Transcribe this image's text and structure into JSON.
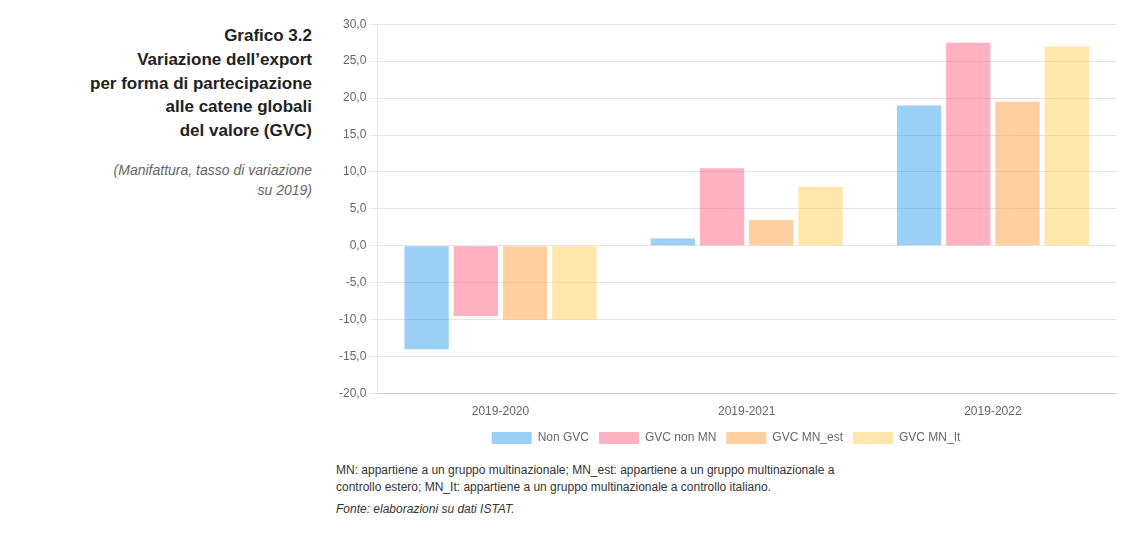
{
  "chart_data": {
    "type": "bar",
    "title": "Grafico 3.2\nVariazione dell’export\nper forma di partecipazione\nalle catene globali\ndel valore (GVC)",
    "subtitle": "(Manifattura, tasso di variazione\nsu 2019)",
    "annotations": [
      "MN: appartiene a un gruppo multinazionale; MN_est: appartiene a un gruppo multinazionale a\ncontrollo estero; MN_It: appartiene a un gruppo multinazionale a controllo italiano.",
      "Fonte: elaborazioni su dati ISTAT."
    ],
    "categories": [
      "2019-2020",
      "2019-2021",
      "2019-2022"
    ],
    "series": [
      {
        "name": "Non GVC",
        "values": [
          -14.0,
          1.0,
          19.0
        ]
      },
      {
        "name": "GVC non MN",
        "values": [
          -9.5,
          10.5,
          27.5
        ]
      },
      {
        "name": "GVC MN_est",
        "values": [
          -10.0,
          3.5,
          19.5
        ]
      },
      {
        "name": "GVC MN_It",
        "values": [
          -10.0,
          8.0,
          27.0
        ]
      }
    ],
    "ylim": [
      -20,
      30
    ],
    "yticks": [
      {
        "value": -20,
        "label": "-20,0"
      },
      {
        "value": -15,
        "label": "-15,0"
      },
      {
        "value": -10,
        "label": "-10,0"
      },
      {
        "value": -5,
        "label": "-5,0"
      },
      {
        "value": 0,
        "label": "0,0"
      },
      {
        "value": 5,
        "label": "5,0"
      },
      {
        "value": 10,
        "label": "10,0"
      },
      {
        "value": 15,
        "label": "15,0"
      },
      {
        "value": 20,
        "label": "20,0"
      },
      {
        "value": 25,
        "label": "25,0"
      },
      {
        "value": 30,
        "label": "30,0"
      }
    ],
    "grid": true,
    "legend": "bottom"
  }
}
